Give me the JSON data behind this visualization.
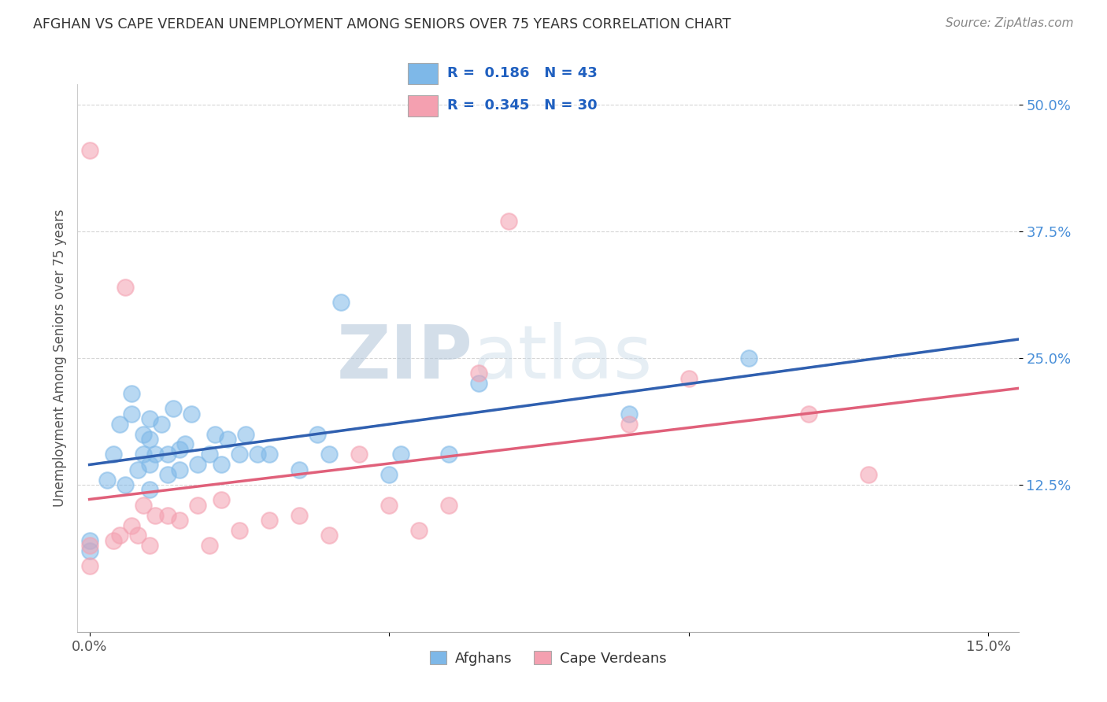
{
  "title": "AFGHAN VS CAPE VERDEAN UNEMPLOYMENT AMONG SENIORS OVER 75 YEARS CORRELATION CHART",
  "source": "Source: ZipAtlas.com",
  "xlabel": "",
  "ylabel": "Unemployment Among Seniors over 75 years",
  "xlim": [
    -0.002,
    0.155
  ],
  "ylim": [
    -0.02,
    0.52
  ],
  "xticks": [
    0.0,
    0.05,
    0.1,
    0.15
  ],
  "xticklabels": [
    "0.0%",
    "",
    "",
    "15.0%"
  ],
  "yticks": [
    0.125,
    0.25,
    0.375,
    0.5
  ],
  "yticklabels": [
    "12.5%",
    "25.0%",
    "37.5%",
    "50.0%"
  ],
  "afghan_color": "#7eb8e8",
  "capeverdean_color": "#f4a0b0",
  "afghan_trendline_color": "#3060b0",
  "capeverdean_trendline_color": "#e0607a",
  "afghan_R": 0.186,
  "afghan_N": 43,
  "capeverdean_R": 0.345,
  "capeverdean_N": 30,
  "legend_label_1": "Afghans",
  "legend_label_2": "Cape Verdeans",
  "watermark_zip": "ZIP",
  "watermark_atlas": "atlas",
  "afghan_scatter_x": [
    0.0,
    0.0,
    0.003,
    0.004,
    0.005,
    0.006,
    0.007,
    0.007,
    0.008,
    0.009,
    0.009,
    0.01,
    0.01,
    0.01,
    0.01,
    0.011,
    0.012,
    0.013,
    0.013,
    0.014,
    0.015,
    0.015,
    0.016,
    0.017,
    0.018,
    0.02,
    0.021,
    0.022,
    0.023,
    0.025,
    0.026,
    0.028,
    0.03,
    0.035,
    0.038,
    0.04,
    0.042,
    0.05,
    0.052,
    0.06,
    0.065,
    0.09,
    0.11
  ],
  "afghan_scatter_y": [
    0.06,
    0.07,
    0.13,
    0.155,
    0.185,
    0.125,
    0.195,
    0.215,
    0.14,
    0.155,
    0.175,
    0.12,
    0.145,
    0.17,
    0.19,
    0.155,
    0.185,
    0.135,
    0.155,
    0.2,
    0.14,
    0.16,
    0.165,
    0.195,
    0.145,
    0.155,
    0.175,
    0.145,
    0.17,
    0.155,
    0.175,
    0.155,
    0.155,
    0.14,
    0.175,
    0.155,
    0.305,
    0.135,
    0.155,
    0.155,
    0.225,
    0.195,
    0.25
  ],
  "capeverdean_scatter_x": [
    0.0,
    0.0,
    0.0,
    0.004,
    0.005,
    0.006,
    0.007,
    0.008,
    0.009,
    0.01,
    0.011,
    0.013,
    0.015,
    0.018,
    0.02,
    0.022,
    0.025,
    0.03,
    0.035,
    0.04,
    0.045,
    0.05,
    0.055,
    0.06,
    0.065,
    0.07,
    0.09,
    0.1,
    0.12,
    0.13
  ],
  "capeverdean_scatter_y": [
    0.045,
    0.065,
    0.455,
    0.07,
    0.075,
    0.32,
    0.085,
    0.075,
    0.105,
    0.065,
    0.095,
    0.095,
    0.09,
    0.105,
    0.065,
    0.11,
    0.08,
    0.09,
    0.095,
    0.075,
    0.155,
    0.105,
    0.08,
    0.105,
    0.235,
    0.385,
    0.185,
    0.23,
    0.195,
    0.135
  ]
}
